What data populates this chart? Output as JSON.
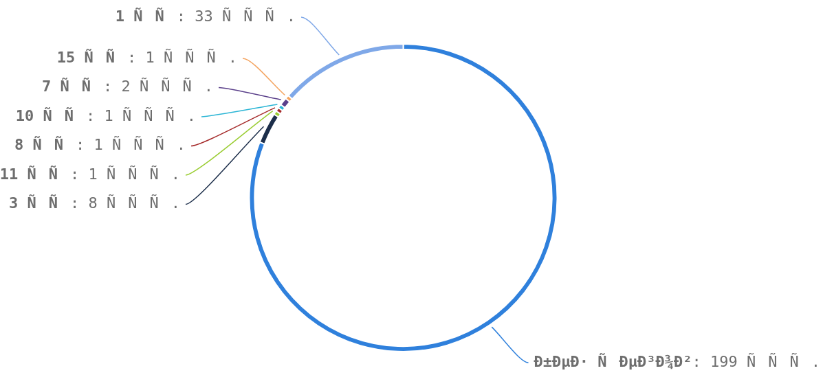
{
  "chart_data": {
    "type": "donut",
    "categories": [
      "Ð±ÐµÐ· ÑÐµÐ³Ð¾Ð²",
      "3 ÑÑ",
      "11 ÑÑ",
      "8 ÑÑ",
      "10 ÑÑ",
      "7 ÑÑ",
      "15 ÑÑ",
      "1 ÑÑ"
    ],
    "values": [
      199,
      8,
      1,
      1,
      1,
      2,
      1,
      33
    ],
    "value_labels": [
      ": 199 ÑÑÑ.",
      ": 8 ÑÑÑ.",
      ": 1 ÑÑÑ.",
      ": 1 ÑÑÑ.",
      ": 1 ÑÑÑ.",
      ": 2 ÑÑÑ.",
      ": 1 ÑÑÑ.",
      ": 33 ÑÑÑ."
    ],
    "colors": [
      "#2f80dc",
      "#1c2e4a",
      "#9acd32",
      "#a52a2a",
      "#2bb5d5",
      "#5a3f8a",
      "#f4a460",
      "#7fa8e8"
    ],
    "legend": false
  }
}
